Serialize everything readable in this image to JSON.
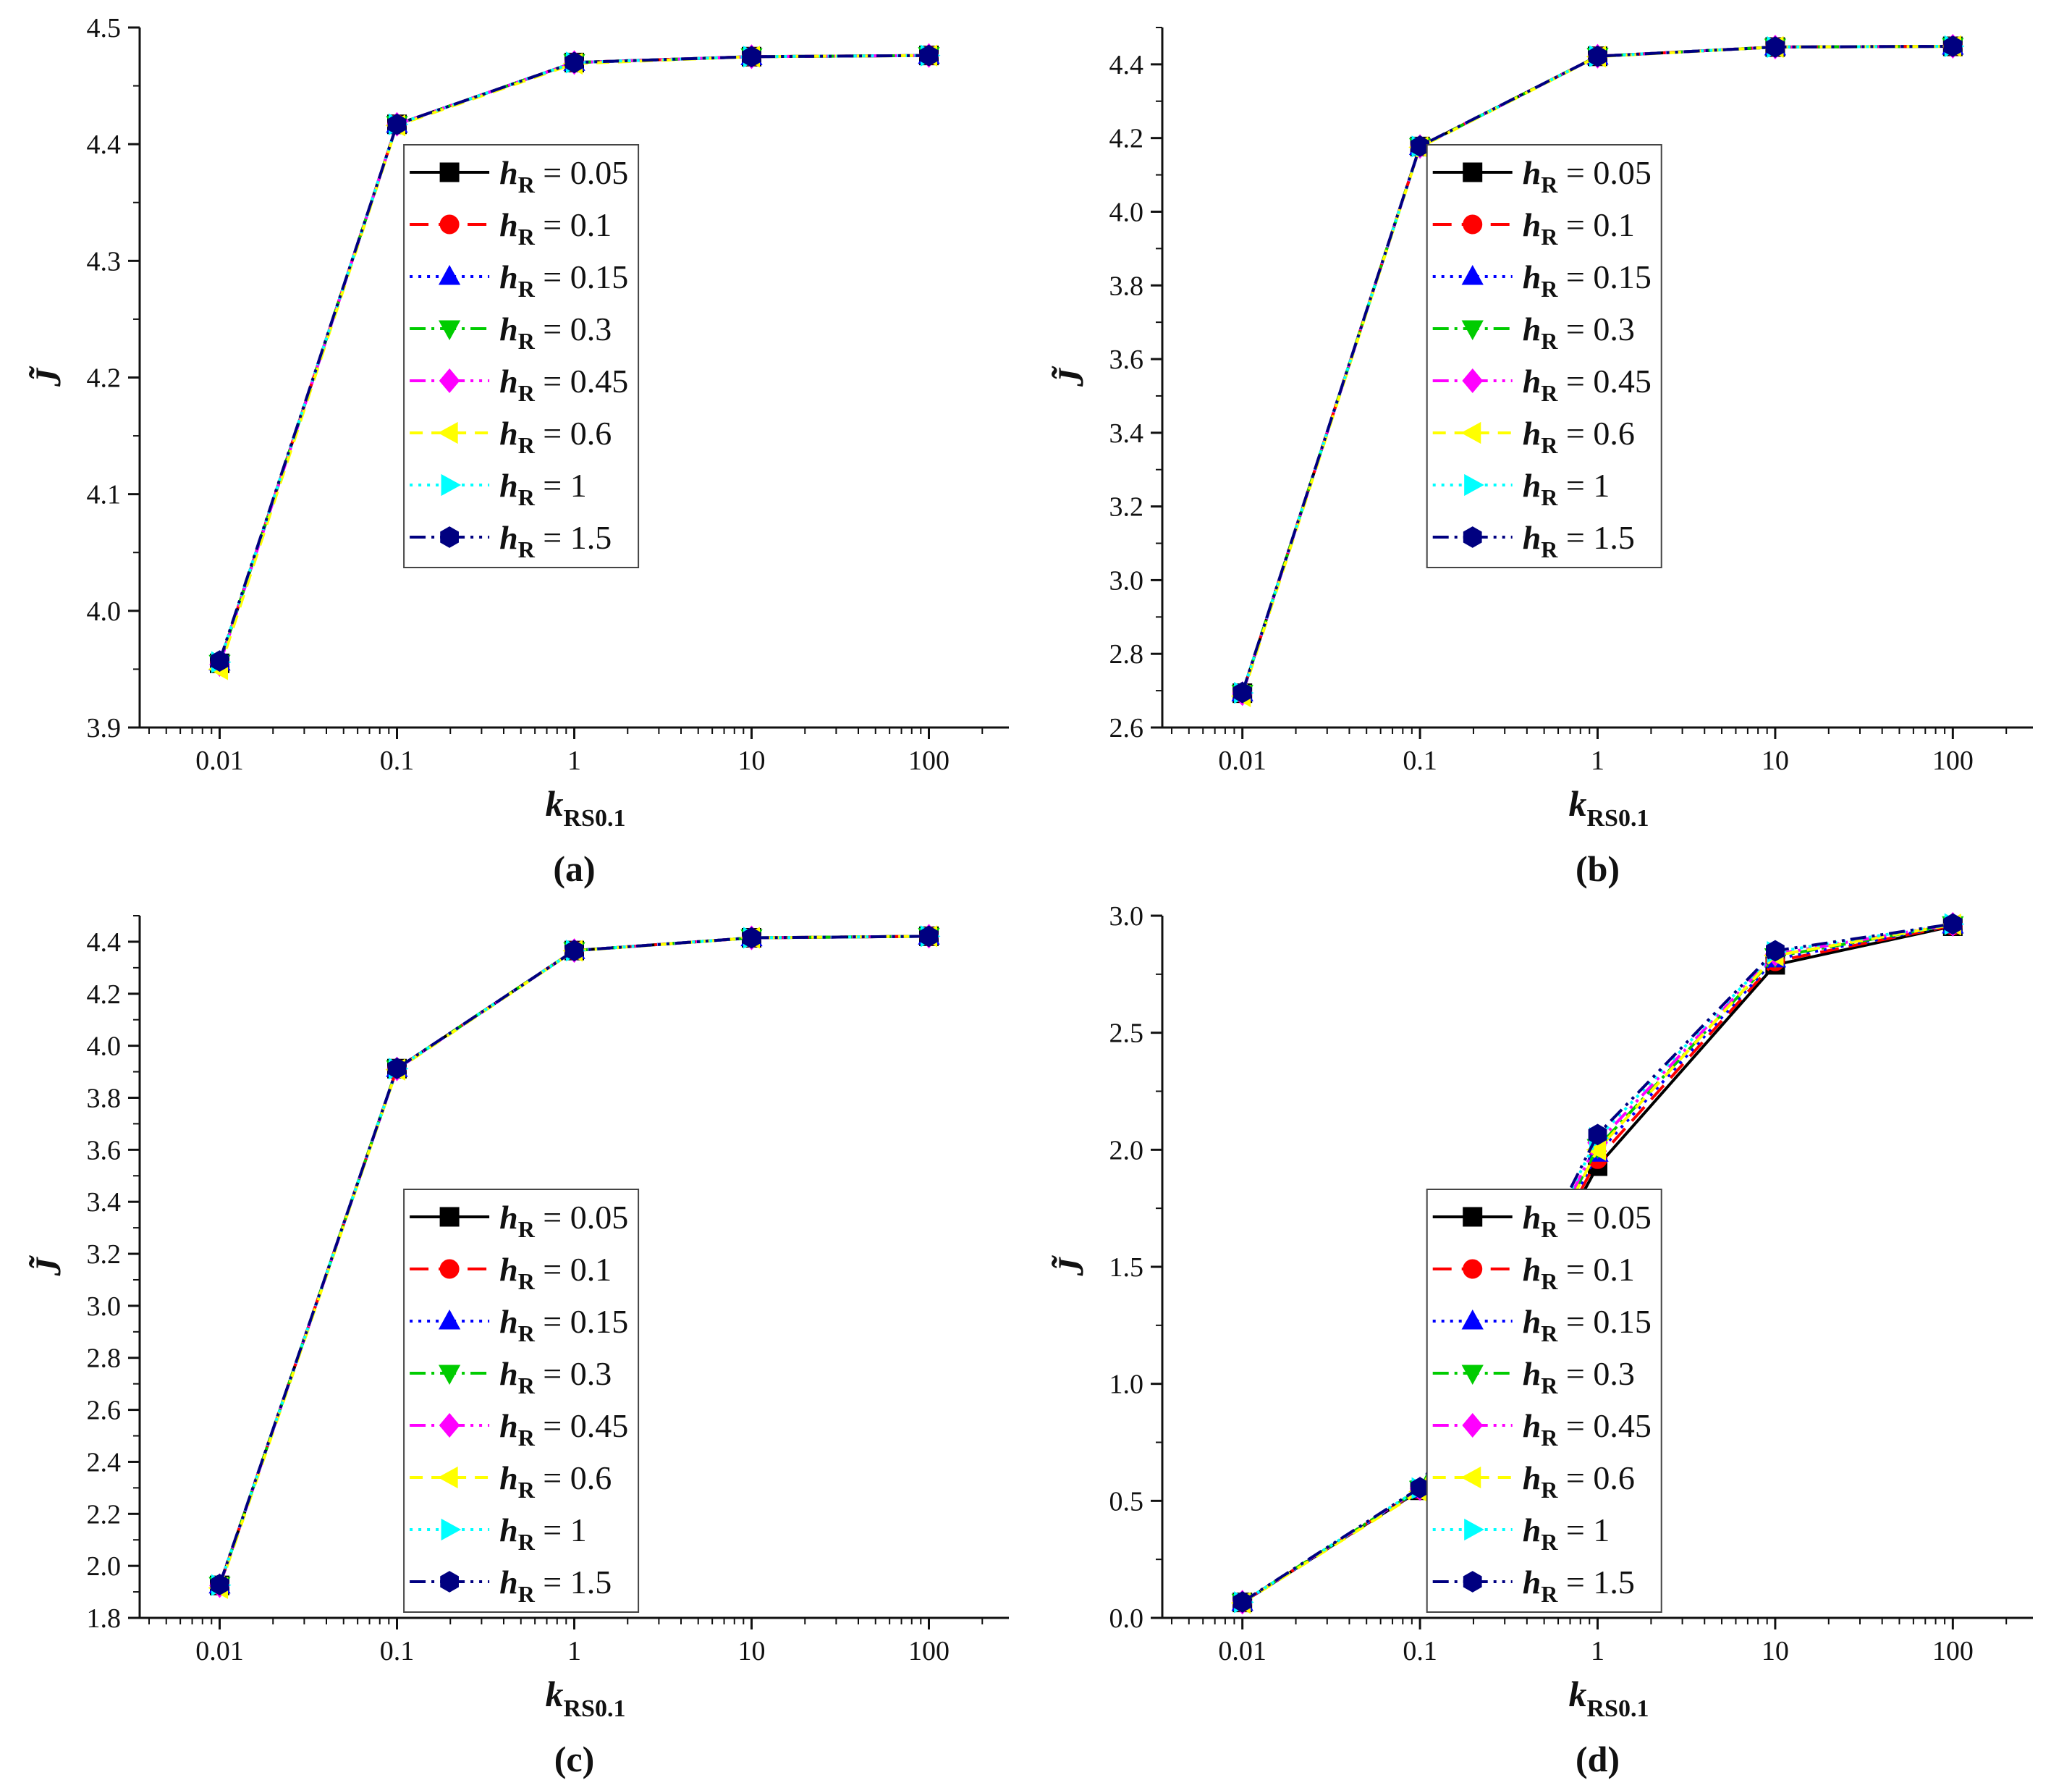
{
  "legend": {
    "series_names": [
      "hR = 0.05",
      "hR = 0.1",
      "hR = 0.15",
      "hR = 0.3",
      "hR = 0.45",
      "hR = 0.6",
      "hR = 1",
      "hR = 1.5"
    ],
    "symbol": "h",
    "subscript": "R",
    "values": [
      "0.05",
      "0.1",
      "0.15",
      "0.3",
      "0.45",
      "0.6",
      "1",
      "1.5"
    ]
  },
  "series_style": [
    {
      "color": "#000000",
      "marker": "square",
      "dash": "none"
    },
    {
      "color": "#ff0000",
      "marker": "circle",
      "dash": "26,14"
    },
    {
      "color": "#0000ff",
      "marker": "triangle-up",
      "dash": "4,8"
    },
    {
      "color": "#00cc00",
      "marker": "triangle-down",
      "dash": "22,8,4,8"
    },
    {
      "color": "#ff00ff",
      "marker": "diamond",
      "dash": "22,8,4,8,4,8"
    },
    {
      "color": "#ffff00",
      "marker": "triangle-left",
      "dash": "18,12"
    },
    {
      "color": "#00ffff",
      "marker": "triangle-right",
      "dash": "4,8"
    },
    {
      "color": "#000080",
      "marker": "hexagon",
      "dash": "22,8,4,8,4,8"
    }
  ],
  "chart_data": [
    {
      "panel": "(a)",
      "type": "line",
      "xscale": "log",
      "x": [
        0.01,
        0.1,
        1,
        10,
        100
      ],
      "xtick_labels": [
        "0.01",
        "0.1",
        "1",
        "10",
        "100"
      ],
      "xlabel_main": "k",
      "xlabel_sub": "RS0.1",
      "ylabel": "J̃",
      "ylim": [
        3.9,
        4.5
      ],
      "yticks": [
        3.9,
        4.0,
        4.1,
        4.2,
        4.3,
        4.4,
        4.5
      ],
      "ytick_labels": [
        "3.9",
        "4.0",
        "4.1",
        "4.2",
        "4.3",
        "4.4",
        "4.5"
      ],
      "legend_position": "middle-right",
      "series": [
        {
          "name": "hR = 0.05",
          "values": [
            3.955,
            4.417,
            4.47,
            4.475,
            4.476
          ]
        },
        {
          "name": "hR = 0.1",
          "values": [
            3.955,
            4.417,
            4.47,
            4.475,
            4.476
          ]
        },
        {
          "name": "hR = 0.15",
          "values": [
            3.956,
            4.417,
            4.47,
            4.475,
            4.476
          ]
        },
        {
          "name": "hR = 0.3",
          "values": [
            3.955,
            4.417,
            4.47,
            4.475,
            4.476
          ]
        },
        {
          "name": "hR = 0.45",
          "values": [
            3.954,
            4.417,
            4.47,
            4.475,
            4.476
          ]
        },
        {
          "name": "hR = 0.6",
          "values": [
            3.95,
            4.416,
            4.469,
            4.475,
            4.476
          ]
        },
        {
          "name": "hR = 1",
          "values": [
            3.956,
            4.417,
            4.47,
            4.475,
            4.476
          ]
        },
        {
          "name": "hR = 1.5",
          "values": [
            3.957,
            4.417,
            4.47,
            4.475,
            4.476
          ]
        }
      ]
    },
    {
      "panel": "(b)",
      "type": "line",
      "xscale": "log",
      "x": [
        0.01,
        0.1,
        1,
        10,
        100
      ],
      "xtick_labels": [
        "0.01",
        "0.1",
        "1",
        "10",
        "100"
      ],
      "xlabel_main": "k",
      "xlabel_sub": "RS0.1",
      "ylabel": "J̃",
      "ylim": [
        2.6,
        4.5
      ],
      "yticks": [
        2.6,
        2.8,
        3.0,
        3.2,
        3.4,
        3.6,
        3.8,
        4.0,
        4.2,
        4.4
      ],
      "ytick_labels": [
        "2.6",
        "2.8",
        "3.0",
        "3.2",
        "3.4",
        "3.6",
        "3.8",
        "4.0",
        "4.2",
        "4.4"
      ],
      "legend_position": "middle-right",
      "series": [
        {
          "name": "hR = 0.05",
          "values": [
            2.693,
            4.177,
            4.422,
            4.447,
            4.449
          ]
        },
        {
          "name": "hR = 0.1",
          "values": [
            2.693,
            4.177,
            4.422,
            4.447,
            4.449
          ]
        },
        {
          "name": "hR = 0.15",
          "values": [
            2.694,
            4.177,
            4.422,
            4.447,
            4.449
          ]
        },
        {
          "name": "hR = 0.3",
          "values": [
            2.693,
            4.177,
            4.422,
            4.447,
            4.449
          ]
        },
        {
          "name": "hR = 0.45",
          "values": [
            2.692,
            4.177,
            4.422,
            4.447,
            4.449
          ]
        },
        {
          "name": "hR = 0.6",
          "values": [
            2.685,
            4.175,
            4.421,
            4.447,
            4.449
          ]
        },
        {
          "name": "hR = 1",
          "values": [
            2.694,
            4.177,
            4.422,
            4.447,
            4.449
          ]
        },
        {
          "name": "hR = 1.5",
          "values": [
            2.695,
            4.178,
            4.422,
            4.447,
            4.449
          ]
        }
      ]
    },
    {
      "panel": "(c)",
      "type": "line",
      "xscale": "log",
      "x": [
        0.01,
        0.1,
        1,
        10,
        100
      ],
      "xtick_labels": [
        "0.01",
        "0.1",
        "1",
        "10",
        "100"
      ],
      "xlabel_main": "k",
      "xlabel_sub": "RS0.1",
      "ylabel": "J̃",
      "ylim": [
        1.8,
        4.5
      ],
      "yticks": [
        1.8,
        2.0,
        2.2,
        2.4,
        2.6,
        2.8,
        3.0,
        3.2,
        3.4,
        3.6,
        3.8,
        4.0,
        4.2,
        4.4
      ],
      "ytick_labels": [
        "1.8",
        "2.0",
        "2.2",
        "2.4",
        "2.6",
        "2.8",
        "3.0",
        "3.2",
        "3.4",
        "3.6",
        "3.8",
        "4.0",
        "4.2",
        "4.4"
      ],
      "legend_position": "lower-right",
      "series": [
        {
          "name": "hR = 0.05",
          "values": [
            1.925,
            3.912,
            4.366,
            4.415,
            4.421
          ]
        },
        {
          "name": "hR = 0.1",
          "values": [
            1.925,
            3.912,
            4.366,
            4.415,
            4.421
          ]
        },
        {
          "name": "hR = 0.15",
          "values": [
            1.926,
            3.912,
            4.366,
            4.415,
            4.421
          ]
        },
        {
          "name": "hR = 0.3",
          "values": [
            1.925,
            3.912,
            4.366,
            4.415,
            4.421
          ]
        },
        {
          "name": "hR = 0.45",
          "values": [
            1.924,
            3.911,
            4.366,
            4.415,
            4.421
          ]
        },
        {
          "name": "hR = 0.6",
          "values": [
            1.915,
            3.908,
            4.365,
            4.415,
            4.421
          ]
        },
        {
          "name": "hR = 1",
          "values": [
            1.926,
            3.912,
            4.366,
            4.415,
            4.421
          ]
        },
        {
          "name": "hR = 1.5",
          "values": [
            1.928,
            3.913,
            4.366,
            4.415,
            4.421
          ]
        }
      ]
    },
    {
      "panel": "(d)",
      "type": "line",
      "xscale": "log",
      "x": [
        0.01,
        0.1,
        1,
        10,
        100
      ],
      "xtick_labels": [
        "0.01",
        "0.1",
        "1",
        "10",
        "100"
      ],
      "xlabel_main": "k",
      "xlabel_sub": "RS0.1",
      "ylabel": "J̃",
      "ylim": [
        0.0,
        3.0
      ],
      "yticks": [
        0.0,
        0.5,
        1.0,
        1.5,
        2.0,
        2.5,
        3.0
      ],
      "ytick_labels": [
        "0.0",
        "0.5",
        "1.0",
        "1.5",
        "2.0",
        "2.5",
        "3.0"
      ],
      "legend_position": "lower-right",
      "series": [
        {
          "name": "hR = 0.05",
          "values": [
            0.066,
            0.545,
            1.93,
            2.79,
            2.955
          ]
        },
        {
          "name": "hR = 0.1",
          "values": [
            0.066,
            0.547,
            1.96,
            2.805,
            2.958
          ]
        },
        {
          "name": "hR = 0.15",
          "values": [
            0.066,
            0.548,
            1.985,
            2.815,
            2.96
          ]
        },
        {
          "name": "hR = 0.3",
          "values": [
            0.067,
            0.55,
            2.01,
            2.825,
            2.962
          ]
        },
        {
          "name": "hR = 0.45",
          "values": [
            0.067,
            0.552,
            2.03,
            2.835,
            2.963
          ]
        },
        {
          "name": "hR = 0.6",
          "values": [
            0.064,
            0.54,
            2.0,
            2.83,
            2.962
          ]
        },
        {
          "name": "hR = 1",
          "values": [
            0.067,
            0.554,
            2.05,
            2.845,
            2.964
          ]
        },
        {
          "name": "hR = 1.5",
          "values": [
            0.068,
            0.556,
            2.065,
            2.85,
            2.965
          ]
        }
      ]
    }
  ]
}
